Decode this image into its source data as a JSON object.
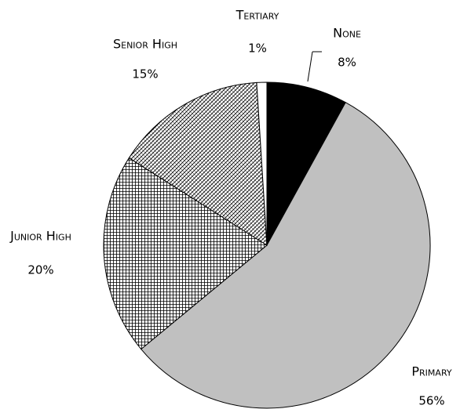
{
  "chart_data": {
    "type": "pie",
    "categories": [
      "None",
      "Primary",
      "Junior High",
      "Senior High",
      "Tertiary"
    ],
    "values": [
      8,
      56,
      20,
      15,
      1
    ],
    "value_labels": [
      "8%",
      "56%",
      "20%",
      "15%",
      "1%"
    ],
    "colors": [
      "#000000",
      "#c0c0c0",
      "url(#grid)",
      "url(#hatch)",
      "#ffffff"
    ]
  }
}
